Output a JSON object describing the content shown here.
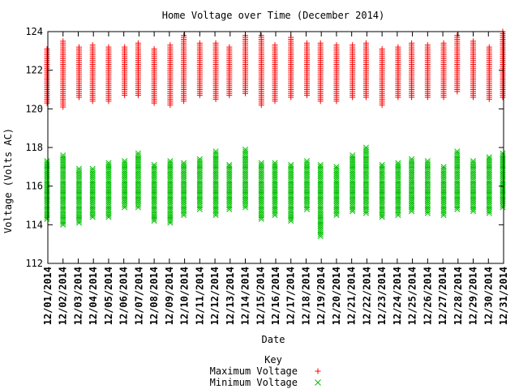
{
  "chart_data": {
    "type": "scatter",
    "title": "Home Voltage over Time (December 2014)",
    "xlabel": "Date",
    "ylabel": "Voltage (Volts AC)",
    "ylim": [
      112,
      124
    ],
    "yticks": [
      112,
      114,
      116,
      118,
      120,
      122,
      124
    ],
    "categories": [
      "12/01/2014",
      "12/02/2014",
      "12/03/2014",
      "12/04/2014",
      "12/05/2014",
      "12/06/2014",
      "12/07/2014",
      "12/08/2014",
      "12/09/2014",
      "12/10/2014",
      "12/11/2014",
      "12/12/2014",
      "12/13/2014",
      "12/14/2014",
      "12/15/2014",
      "12/16/2014",
      "12/17/2014",
      "12/18/2014",
      "12/19/2014",
      "12/20/2014",
      "12/21/2014",
      "12/22/2014",
      "12/23/2014",
      "12/24/2014",
      "12/25/2014",
      "12/26/2014",
      "12/27/2014",
      "12/28/2014",
      "12/29/2014",
      "12/30/2014",
      "12/31/2014"
    ],
    "grid": false,
    "legend": {
      "title": "Key",
      "position": "bottom-center"
    },
    "series": [
      {
        "name": "Maximum Voltage",
        "marker": "plus",
        "color": "#ff0000",
        "min": [
          120.3,
          120.1,
          120.6,
          120.4,
          120.4,
          120.7,
          120.7,
          120.3,
          120.2,
          120.4,
          120.7,
          120.5,
          120.7,
          120.8,
          120.2,
          120.4,
          120.6,
          120.7,
          120.4,
          120.4,
          120.6,
          120.6,
          120.2,
          120.6,
          120.6,
          120.6,
          120.6,
          120.9,
          120.6,
          120.5,
          120.6
        ],
        "max": [
          123.1,
          123.5,
          123.2,
          123.3,
          123.2,
          123.2,
          123.4,
          123.1,
          123.3,
          123.8,
          123.4,
          123.4,
          123.2,
          123.8,
          123.8,
          123.3,
          123.7,
          123.4,
          123.4,
          123.3,
          123.3,
          123.4,
          123.1,
          123.2,
          123.4,
          123.3,
          123.4,
          123.8,
          123.5,
          123.2,
          124.0
        ]
      },
      {
        "name": "Minimum Voltage",
        "marker": "x",
        "color": "#00c000",
        "min": [
          114.3,
          114.0,
          114.1,
          114.4,
          114.4,
          114.9,
          114.9,
          114.2,
          114.1,
          114.5,
          114.8,
          114.5,
          114.8,
          114.9,
          114.3,
          114.5,
          114.2,
          114.8,
          113.4,
          114.5,
          114.7,
          114.6,
          114.4,
          114.5,
          114.7,
          114.6,
          114.5,
          114.8,
          114.7,
          114.6,
          114.9
        ],
        "max": [
          117.3,
          117.6,
          116.9,
          116.9,
          117.2,
          117.3,
          117.7,
          117.1,
          117.3,
          117.2,
          117.4,
          117.8,
          117.1,
          117.9,
          117.2,
          117.2,
          117.1,
          117.3,
          117.1,
          117.0,
          117.6,
          118.0,
          117.1,
          117.2,
          117.4,
          117.3,
          117.0,
          117.8,
          117.3,
          117.5,
          117.7
        ]
      }
    ]
  }
}
